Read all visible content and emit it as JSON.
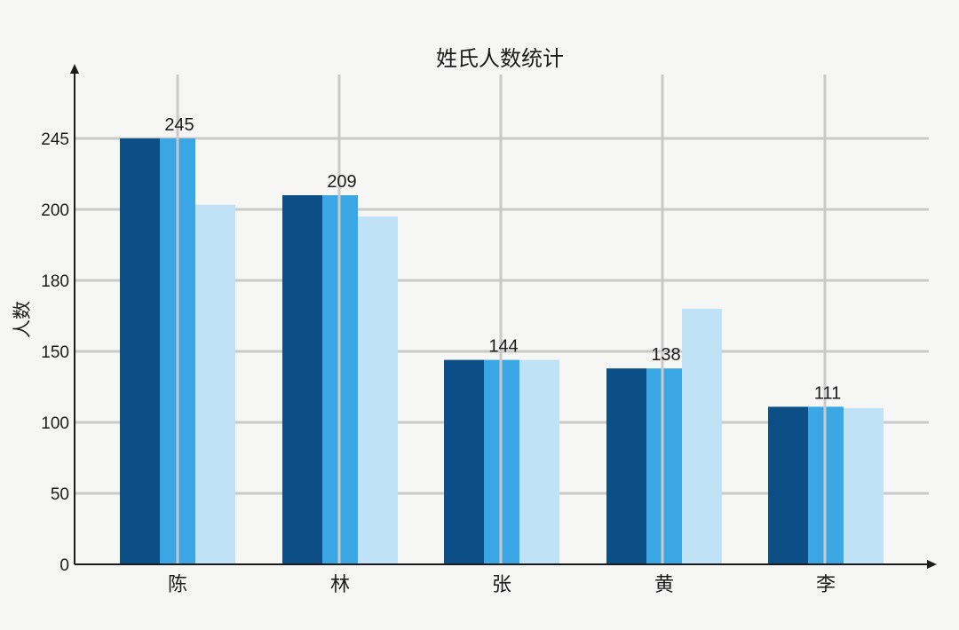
{
  "chart_data": {
    "type": "bar",
    "title": "姓氏人数统计",
    "xlabel": "",
    "ylabel": "人数",
    "categories": [
      "陈",
      "林",
      "张",
      "黄",
      "李"
    ],
    "series": [
      {
        "values": [
          245,
          209,
          144,
          138,
          111
        ]
      },
      {
        "values": [
          245,
          209,
          144,
          138,
          111
        ]
      },
      {
        "values": [
          203,
          198,
          144,
          168,
          110
        ]
      }
    ],
    "data_labels": [
      "245",
      "209",
      "144",
      "138",
      "111"
    ],
    "y_ticks": [
      "0",
      "50",
      "100",
      "150",
      "180",
      "200",
      "245"
    ],
    "grid": true,
    "legend": "none",
    "colors": [
      "#0b4f86",
      "#3aa6e4",
      "#bfe2f7"
    ]
  }
}
